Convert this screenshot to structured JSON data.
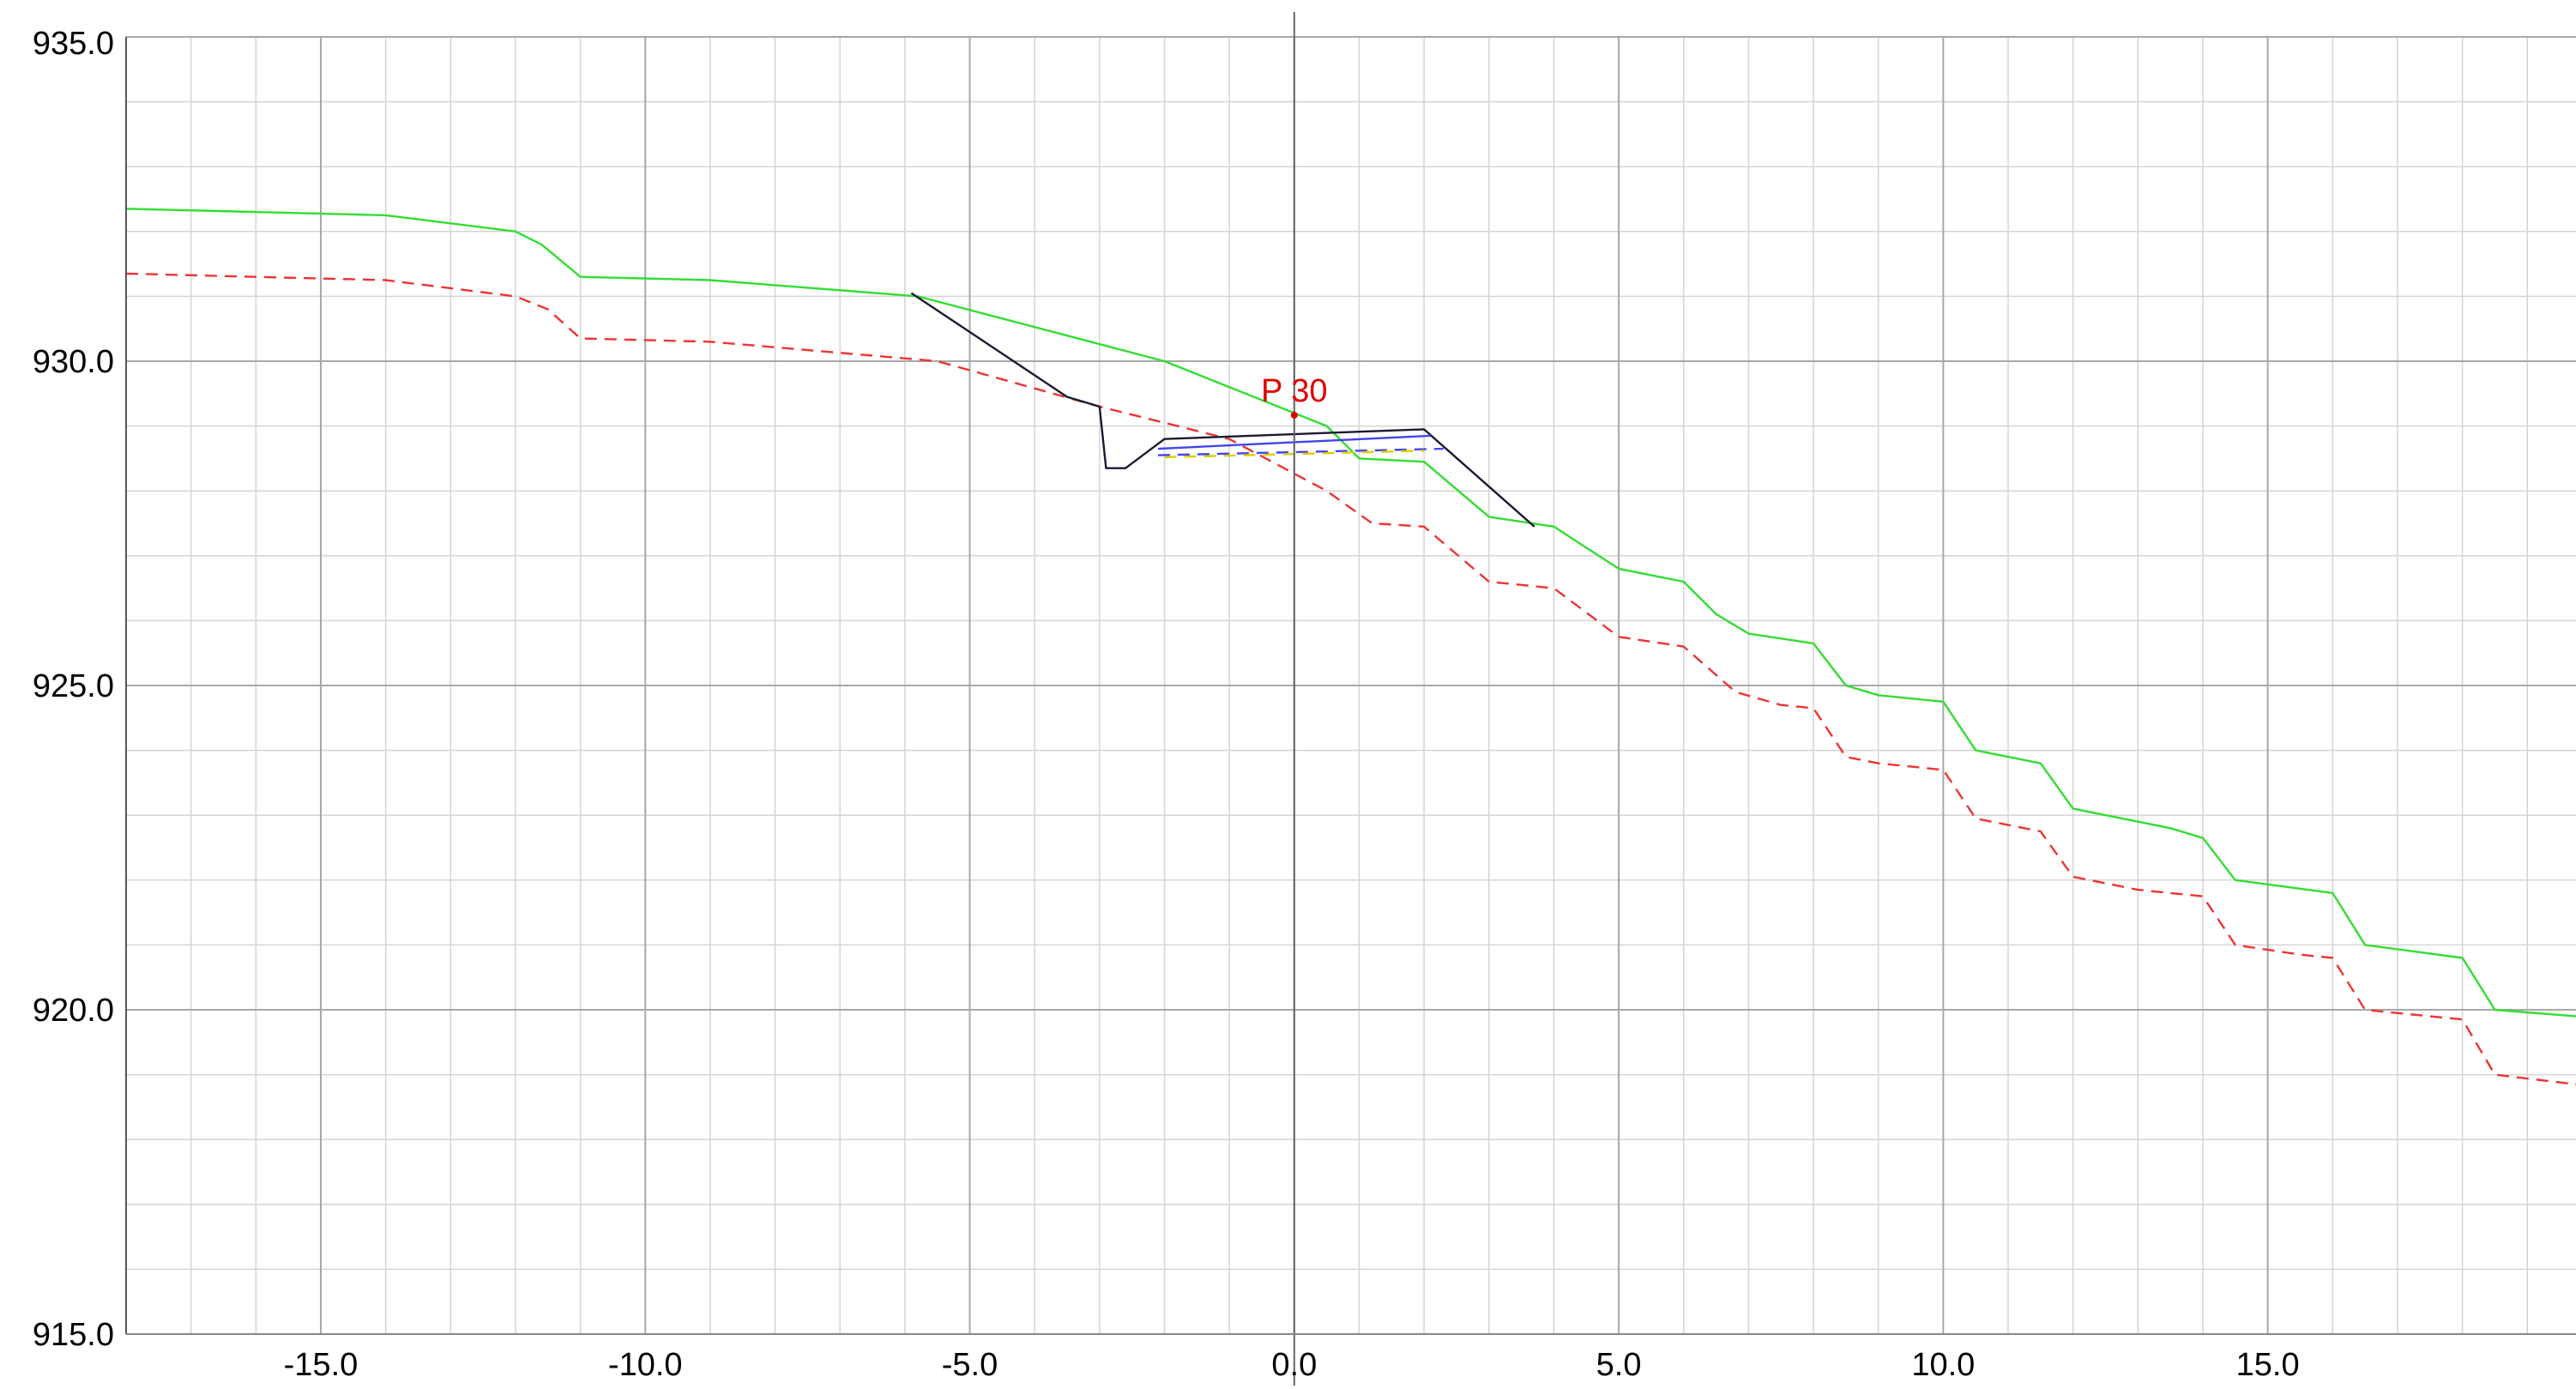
{
  "chart_data": {
    "type": "line",
    "title": "",
    "xlabel": "",
    "ylabel": "",
    "xlim": [
      -18.0,
      19.75
    ],
    "ylim": [
      915.0,
      935.0
    ],
    "grid": true,
    "x_ticks": [
      -15.0,
      -10.0,
      -5.0,
      0.0,
      5.0,
      10.0,
      15.0
    ],
    "x_tick_labels": [
      "-15.0",
      "-10.0",
      "-5.0",
      "0.0",
      "5.0",
      "10.0",
      "15.0"
    ],
    "y_ticks": [
      915.0,
      920.0,
      925.0,
      930.0,
      935.0
    ],
    "y_tick_labels": [
      "915.0",
      "920.0",
      "925.0",
      "930.0",
      "935.0"
    ],
    "annotations": [
      {
        "text": "P 30",
        "x": 0.0,
        "y": 929.3,
        "color": "#e00000"
      }
    ],
    "series": [
      {
        "color": "#33dd33",
        "style": "solid",
        "points": [
          [
            -18.0,
            932.35
          ],
          [
            -14.0,
            932.25
          ],
          [
            -12.0,
            932.0
          ],
          [
            -11.6,
            931.8
          ],
          [
            -11.0,
            931.3
          ],
          [
            -9.0,
            931.25
          ],
          [
            -5.8,
            931.0
          ],
          [
            -2.0,
            930.0
          ],
          [
            0.5,
            929.0
          ],
          [
            1.0,
            928.5
          ],
          [
            2.0,
            928.45
          ],
          [
            3.0,
            927.6
          ],
          [
            4.0,
            927.45
          ],
          [
            5.0,
            926.8
          ],
          [
            6.0,
            926.6
          ],
          [
            6.5,
            926.1
          ],
          [
            7.0,
            925.8
          ],
          [
            8.0,
            925.65
          ],
          [
            8.5,
            925.0
          ],
          [
            9.0,
            924.85
          ],
          [
            10.0,
            924.75
          ],
          [
            10.5,
            924.0
          ],
          [
            11.5,
            923.8
          ],
          [
            12.0,
            923.1
          ],
          [
            13.5,
            922.8
          ],
          [
            14.0,
            922.65
          ],
          [
            14.5,
            922.0
          ],
          [
            16.0,
            921.8
          ],
          [
            16.5,
            921.0
          ],
          [
            18.0,
            920.8
          ],
          [
            18.5,
            920.0
          ],
          [
            19.75,
            919.9
          ]
        ]
      },
      {
        "color": "#ee3333",
        "style": "dashed",
        "points": [
          [
            -18.0,
            931.35
          ],
          [
            -14.0,
            931.25
          ],
          [
            -12.0,
            931.0
          ],
          [
            -11.5,
            930.8
          ],
          [
            -11.0,
            930.35
          ],
          [
            -9.0,
            930.3
          ],
          [
            -5.5,
            930.0
          ],
          [
            -3.0,
            929.3
          ],
          [
            -1.0,
            928.8
          ],
          [
            0.5,
            928.0
          ],
          [
            1.2,
            927.5
          ],
          [
            2.0,
            927.45
          ],
          [
            3.0,
            926.6
          ],
          [
            4.0,
            926.5
          ],
          [
            5.0,
            925.75
          ],
          [
            6.0,
            925.6
          ],
          [
            6.8,
            924.9
          ],
          [
            7.5,
            924.7
          ],
          [
            8.0,
            924.65
          ],
          [
            8.5,
            923.9
          ],
          [
            9.0,
            923.8
          ],
          [
            10.0,
            923.7
          ],
          [
            10.5,
            922.95
          ],
          [
            11.5,
            922.75
          ],
          [
            12.0,
            922.05
          ],
          [
            13.0,
            921.85
          ],
          [
            14.0,
            921.75
          ],
          [
            14.5,
            921.0
          ],
          [
            15.5,
            920.85
          ],
          [
            16.0,
            920.8
          ],
          [
            16.5,
            920.0
          ],
          [
            17.5,
            919.9
          ],
          [
            18.0,
            919.85
          ],
          [
            18.5,
            919.0
          ],
          [
            19.75,
            918.85
          ]
        ]
      },
      {
        "color": "#1a1a33",
        "style": "solid",
        "points": [
          [
            -5.9,
            931.05
          ],
          [
            -3.5,
            929.45
          ],
          [
            -3.0,
            929.3
          ],
          [
            -2.9,
            928.35
          ],
          [
            -2.6,
            928.35
          ],
          [
            -2.0,
            928.8
          ],
          [
            2.0,
            928.95
          ],
          [
            3.7,
            927.45
          ]
        ]
      },
      {
        "color": "#4444ee",
        "style": "solid",
        "points": [
          [
            -2.1,
            928.65
          ],
          [
            2.1,
            928.85
          ]
        ]
      },
      {
        "color": "#4444ee",
        "style": "dashed",
        "points": [
          [
            -2.1,
            928.55
          ],
          [
            2.3,
            928.65
          ]
        ]
      },
      {
        "color": "#ddcc00",
        "style": "dashed",
        "points": [
          [
            -2.0,
            928.52
          ],
          [
            2.0,
            928.62
          ]
        ]
      }
    ]
  }
}
